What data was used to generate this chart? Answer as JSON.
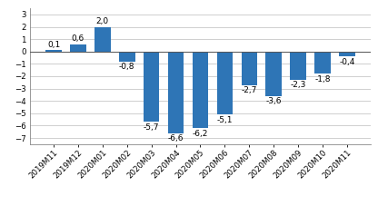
{
  "categories": [
    "2019M11",
    "2019M12",
    "2020M01",
    "2020M02",
    "2020M03",
    "2020M04",
    "2020M05",
    "2020M06",
    "2020M07",
    "2020M08",
    "2020M09",
    "2020M10",
    "2020M11"
  ],
  "values": [
    0.1,
    0.6,
    2.0,
    -0.8,
    -5.7,
    -6.6,
    -6.2,
    -5.1,
    -2.7,
    -3.6,
    -2.3,
    -1.8,
    -0.4
  ],
  "bar_color": "#2E75B6",
  "ylim": [
    -7.5,
    3.5
  ],
  "yticks": [
    -7,
    -6,
    -5,
    -4,
    -3,
    -2,
    -1,
    0,
    1,
    2,
    3
  ],
  "grid_color": "#C8C8C8",
  "background_color": "#FFFFFF",
  "label_fontsize": 6.5,
  "tick_fontsize": 6.2,
  "bar_width": 0.65
}
